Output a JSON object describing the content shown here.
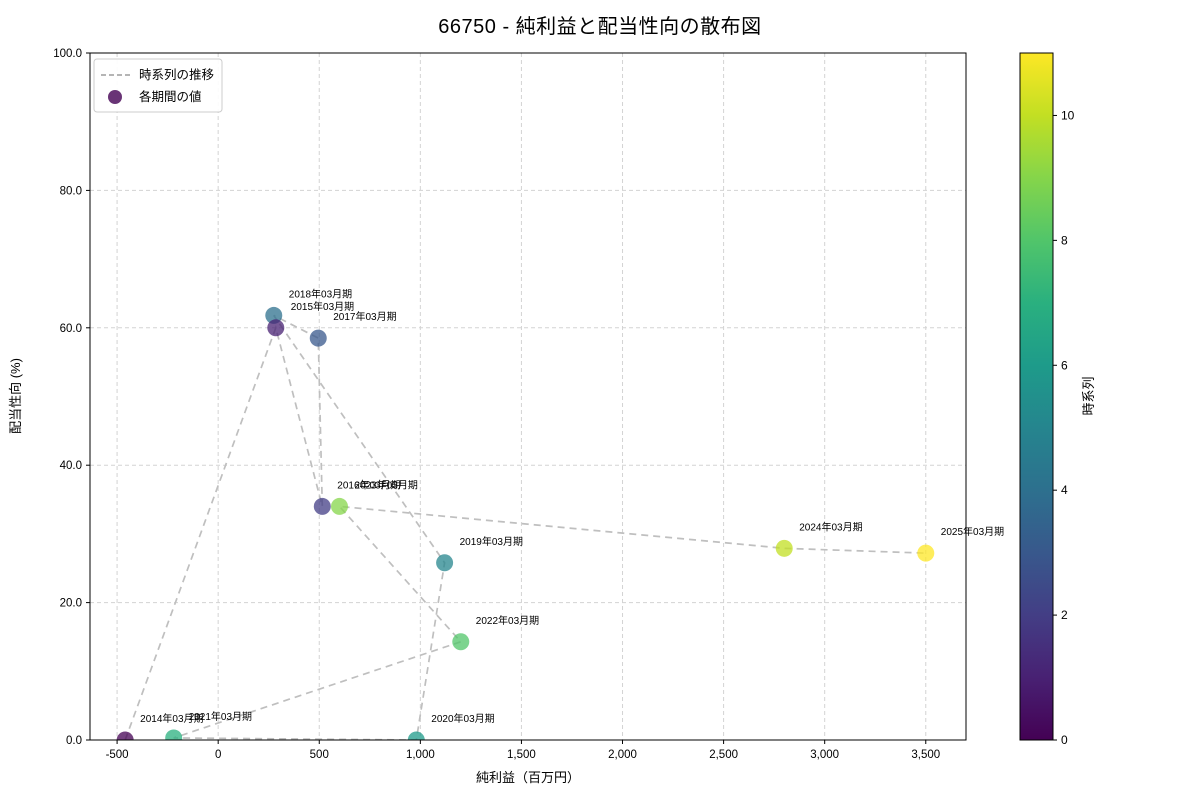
{
  "title": "66750 - 純利益と配当性向の散布図",
  "legend": {
    "line_label": "時系列の推移",
    "dot_label": "各期間の値"
  },
  "axes": {
    "xlabel": "純利益（百万円）",
    "ylabel": "配当性向 (%)",
    "xlim": [
      -634,
      3699
    ],
    "ylim": [
      0,
      100
    ],
    "x_ticks": [
      {
        "value": -500,
        "label": "-500"
      },
      {
        "value": 0,
        "label": "0"
      },
      {
        "value": 500,
        "label": "500"
      },
      {
        "value": 1000,
        "label": "1,000"
      },
      {
        "value": 1500,
        "label": "1,500"
      },
      {
        "value": 2000,
        "label": "2,000"
      },
      {
        "value": 2500,
        "label": "2,500"
      },
      {
        "value": 3000,
        "label": "3,000"
      },
      {
        "value": 3500,
        "label": "3,500"
      }
    ],
    "y_ticks": [
      {
        "value": 0,
        "label": "0.0"
      },
      {
        "value": 20,
        "label": "20.0"
      },
      {
        "value": 40,
        "label": "40.0"
      },
      {
        "value": 60,
        "label": "60.0"
      },
      {
        "value": 80,
        "label": "80.0"
      },
      {
        "value": 100,
        "label": "100.0"
      }
    ]
  },
  "colorbar": {
    "label": "時系列",
    "vmin": 0,
    "vmax": 11,
    "ticks": [
      {
        "value": 0,
        "label": "0"
      },
      {
        "value": 2,
        "label": "2"
      },
      {
        "value": 4,
        "label": "4"
      },
      {
        "value": 6,
        "label": "6"
      },
      {
        "value": 8,
        "label": "8"
      },
      {
        "value": 10,
        "label": "10"
      }
    ],
    "colors": [
      "#440154",
      "#482173",
      "#433e85",
      "#38588c",
      "#2d708e",
      "#25858e",
      "#1e9b8a",
      "#2ab07f",
      "#51c56a",
      "#85d54a",
      "#c2df23",
      "#fde725"
    ]
  },
  "chart_data": {
    "type": "scatter",
    "title": "66750 - 純利益と配当性向の散布図",
    "xlabel": "純利益（百万円）",
    "ylabel": "配当性向 (%)",
    "xlim": [
      -634,
      3699
    ],
    "ylim": [
      0,
      100
    ],
    "grid": true,
    "legend_position": "upper left",
    "series_label": "各期間の値",
    "line_label": "時系列の推移",
    "colormap": "viridis",
    "points": [
      {
        "label": "2014年03月期",
        "x": -460,
        "y": 0.0,
        "t": 0,
        "color": "#440154"
      },
      {
        "label": "2015年03月期",
        "x": 285,
        "y": 60.0,
        "t": 1,
        "color": "#482173"
      },
      {
        "label": "2016年03月期",
        "x": 515,
        "y": 34.0,
        "t": 2,
        "color": "#433e85"
      },
      {
        "label": "2017年03月期",
        "x": 495,
        "y": 58.5,
        "t": 3,
        "color": "#38588c"
      },
      {
        "label": "2018年03月期",
        "x": 275,
        "y": 61.8,
        "t": 4,
        "color": "#2d708e"
      },
      {
        "label": "2019年03月期",
        "x": 1120,
        "y": 25.8,
        "t": 5,
        "color": "#25858e"
      },
      {
        "label": "2020年03月期",
        "x": 980,
        "y": 0.0,
        "t": 6,
        "color": "#1e9b8a"
      },
      {
        "label": "2021年03月期",
        "x": -220,
        "y": 0.3,
        "t": 7,
        "color": "#2ab07f"
      },
      {
        "label": "2022年03月期",
        "x": 1200,
        "y": 14.3,
        "t": 8,
        "color": "#51c56a"
      },
      {
        "label": "2023年03月期",
        "x": 600,
        "y": 34.0,
        "t": 9,
        "color": "#85d54a"
      },
      {
        "label": "2024年03月期",
        "x": 2800,
        "y": 27.9,
        "t": 10,
        "color": "#c2df23"
      },
      {
        "label": "2025年03月期",
        "x": 3500,
        "y": 27.2,
        "t": 11,
        "color": "#fde725"
      }
    ]
  },
  "style": {
    "grid_color": "#d3d3d3",
    "connector_color": "#bfbfbf",
    "spine_color": "#000000",
    "point_opacity": "0.75"
  }
}
